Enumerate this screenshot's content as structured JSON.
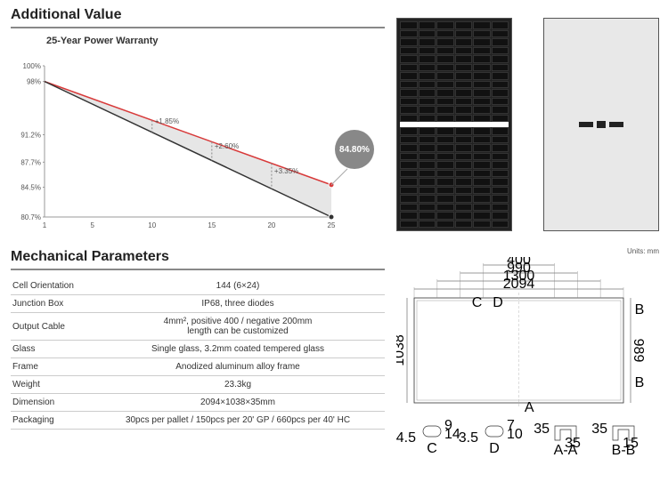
{
  "titles": {
    "additional_value": "Additional Value",
    "mechanical_parameters": "Mechanical Parameters"
  },
  "chart": {
    "type": "line-area",
    "title": "25-Year Power Warranty",
    "callout_value": "84.80%",
    "background_color": "#ffffff",
    "area_fill": "#e6e6e6",
    "upper_line_color": "#d83a3a",
    "lower_line_color": "#333333",
    "dot_stroke": "#333333",
    "x_axis": {
      "min": 1,
      "max": 25,
      "ticks": [
        1,
        5,
        10,
        15,
        20,
        25
      ]
    },
    "y_axis": {
      "ticks_pct": [
        80.7,
        84.5,
        87.7,
        91.2,
        98,
        100
      ]
    },
    "upper_series": [
      {
        "x": 1,
        "y": 98.0
      },
      {
        "x": 25,
        "y": 84.8
      }
    ],
    "lower_series": [
      {
        "x": 1,
        "y": 98.0
      },
      {
        "x": 25,
        "y": 80.7
      }
    ],
    "deltas": [
      {
        "x": 10,
        "label": "+1.85%"
      },
      {
        "x": 15,
        "label": "+2.60%"
      },
      {
        "x": 20,
        "label": "+3.35%"
      }
    ]
  },
  "mech_params": [
    {
      "k": "Cell Orientation",
      "v": "144 (6×24)"
    },
    {
      "k": "Junction Box",
      "v": "IP68, three diodes"
    },
    {
      "k": "Output Cable",
      "v": "4mm², positive 400 / negative 200mm\nlength can be customized"
    },
    {
      "k": "Glass",
      "v": "Single glass, 3.2mm coated tempered glass"
    },
    {
      "k": "Frame",
      "v": "Anodized aluminum alloy frame"
    },
    {
      "k": "Weight",
      "v": "23.3kg"
    },
    {
      "k": "Dimension",
      "v": "2094×1038×35mm"
    },
    {
      "k": "Packaging",
      "v": "30pcs per pallet / 150pcs per 20' GP / 660pcs per 40' HC"
    }
  ],
  "drawing": {
    "units_label": "Units: mm",
    "top_dims": {
      "outer": "2094",
      "d2": "1300",
      "d3": "990",
      "d4": "400"
    },
    "side_dims": {
      "h": "1038",
      "h2": "989"
    },
    "hole_labels": {
      "c": "C",
      "d": "D",
      "a": "A",
      "b": "B"
    },
    "details": {
      "C": {
        "a": "9",
        "b": "14",
        "c": "4.5"
      },
      "D": {
        "a": "7",
        "b": "10",
        "c": "3.5"
      },
      "AA": {
        "h": "35",
        "w": "35"
      },
      "BB": {
        "h": "35",
        "w": "15"
      }
    },
    "detail_labels": {
      "C": "C",
      "D": "D",
      "AA": "A-A",
      "BB": "B-B"
    }
  }
}
